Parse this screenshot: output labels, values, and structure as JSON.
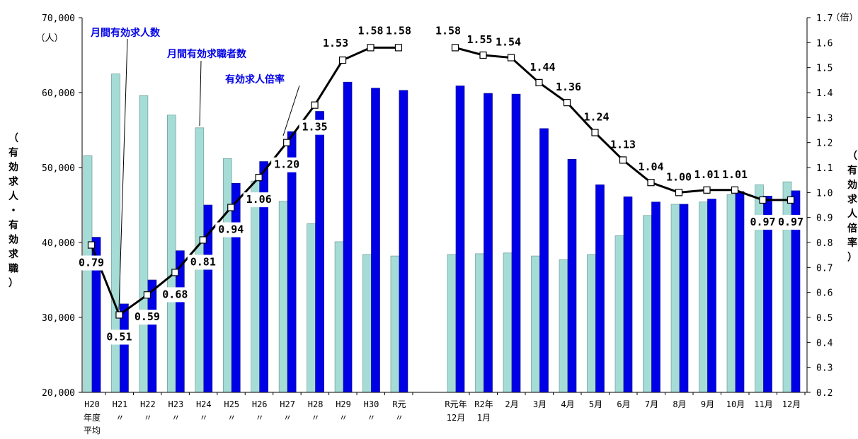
{
  "chart_data": {
    "type": "bar",
    "categories": [
      {
        "top": "H20",
        "sub": [
          "年度",
          "平均"
        ]
      },
      {
        "top": "H21",
        "sub": [
          "〃"
        ]
      },
      {
        "top": "H22",
        "sub": [
          "〃"
        ]
      },
      {
        "top": "H23",
        "sub": [
          "〃"
        ]
      },
      {
        "top": "H24",
        "sub": [
          "〃"
        ]
      },
      {
        "top": "H25",
        "sub": [
          "〃"
        ]
      },
      {
        "top": "H26",
        "sub": [
          "〃"
        ]
      },
      {
        "top": "H27",
        "sub": [
          "〃"
        ]
      },
      {
        "top": "H28",
        "sub": [
          "〃"
        ]
      },
      {
        "top": "H29",
        "sub": [
          "〃"
        ]
      },
      {
        "top": "H30",
        "sub": [
          "〃"
        ]
      },
      {
        "top": "R元",
        "sub": [
          "〃"
        ]
      },
      {
        "top": "R元年",
        "sub": [
          "12月"
        ]
      },
      {
        "top": "R2年",
        "sub": [
          "1月"
        ]
      },
      {
        "top": "2月",
        "sub": []
      },
      {
        "top": "3月",
        "sub": []
      },
      {
        "top": "4月",
        "sub": []
      },
      {
        "top": "5月",
        "sub": []
      },
      {
        "top": "6月",
        "sub": []
      },
      {
        "top": "7月",
        "sub": []
      },
      {
        "top": "8月",
        "sub": []
      },
      {
        "top": "9月",
        "sub": []
      },
      {
        "top": "10月",
        "sub": []
      },
      {
        "top": "11月",
        "sub": []
      },
      {
        "top": "12月",
        "sub": []
      }
    ],
    "series": [
      {
        "name": "月間有効求職者数",
        "kind": "bar",
        "color": "#a6dcd6",
        "values": [
          51600,
          62500,
          59600,
          57000,
          55300,
          51200,
          48200,
          45500,
          42500,
          40100,
          38400,
          38200,
          38400,
          38500,
          38600,
          38200,
          37700,
          38400,
          40900,
          43600,
          45100,
          45400,
          46400,
          47700,
          48100
        ]
      },
      {
        "name": "月間有効求人数",
        "kind": "bar",
        "color": "#0000e6",
        "values": [
          40700,
          31800,
          35000,
          38900,
          45000,
          47900,
          50800,
          54800,
          57500,
          61400,
          60600,
          60300,
          60900,
          59900,
          59800,
          55200,
          51100,
          47700,
          46100,
          45400,
          45100,
          45800,
          46800,
          46200,
          46900
        ]
      },
      {
        "name": "有効求人倍率",
        "kind": "line",
        "axis": "right",
        "color": "#000000",
        "values": [
          0.79,
          0.51,
          0.59,
          0.68,
          0.81,
          0.94,
          1.06,
          1.2,
          1.35,
          1.53,
          1.58,
          1.58,
          1.58,
          1.55,
          1.54,
          1.44,
          1.36,
          1.24,
          1.13,
          1.04,
          1.0,
          1.01,
          1.01,
          0.97,
          0.97
        ],
        "labels": [
          "0.79",
          "0.51",
          "0.59",
          "0.68",
          "0.81",
          "0.94",
          "1.06",
          "1.20",
          "1.35",
          "1.53",
          "1.58",
          "1.58",
          "1.58",
          "1.55",
          "1.54",
          "1.44",
          "1.36",
          "1.24",
          "1.13",
          "1.04",
          "1.00",
          "1.01",
          "1.01",
          "0.97",
          "0.97"
        ]
      }
    ],
    "ylim": [
      20000,
      70000
    ],
    "yticks": [
      "20,000",
      "30,000",
      "40,000",
      "50,000",
      "60,000",
      "70,000"
    ],
    "y2lim": [
      0.2,
      1.7
    ],
    "y2ticks": [
      "0.2",
      "0.3",
      "0.4",
      "0.5",
      "0.6",
      "0.7",
      "0.8",
      "0.9",
      "1.0",
      "1.1",
      "1.2",
      "1.3",
      "1.4",
      "1.5",
      "1.6",
      "1.7"
    ],
    "ylabel_unit": "（人）",
    "y2label_unit": "（倍）",
    "ylabel": "（有効求人・有効求職）",
    "y2label": "（有効求人倍率）",
    "annotations": {
      "jobs": "月間有効求人数",
      "seekers": "月間有効求職者数",
      "ratio": "有効求人倍率"
    },
    "grid": false
  }
}
